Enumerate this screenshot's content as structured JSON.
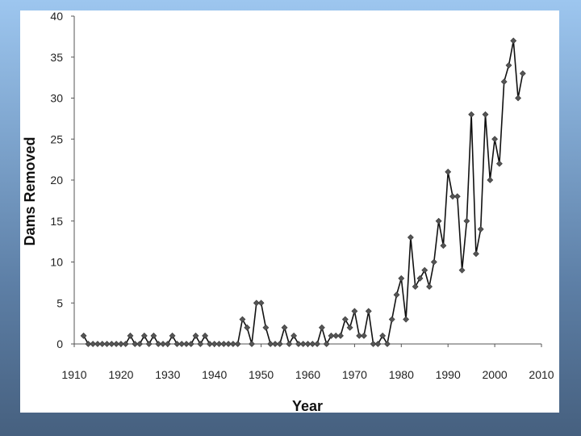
{
  "chart_data": {
    "type": "line",
    "title": "",
    "xlabel": "Year",
    "ylabel": "Dams Removed",
    "xlim": [
      1910,
      2010
    ],
    "ylim": [
      0,
      40
    ],
    "x_ticks": [
      1910,
      1920,
      1930,
      1940,
      1950,
      1960,
      1970,
      1980,
      1990,
      2000,
      2010
    ],
    "y_ticks": [
      0,
      5,
      10,
      15,
      20,
      25,
      30,
      35,
      40
    ],
    "grid": false,
    "legend": "none",
    "colors": {
      "line": "#111111",
      "marker": "#555555"
    },
    "series": [
      {
        "marker": "diamond",
        "x": [
          1912,
          1913,
          1914,
          1915,
          1916,
          1917,
          1918,
          1919,
          1920,
          1921,
          1922,
          1923,
          1924,
          1925,
          1926,
          1927,
          1928,
          1929,
          1930,
          1931,
          1932,
          1933,
          1934,
          1935,
          1936,
          1937,
          1938,
          1939,
          1940,
          1941,
          1942,
          1943,
          1944,
          1945,
          1946,
          1947,
          1948,
          1949,
          1950,
          1951,
          1952,
          1953,
          1954,
          1955,
          1956,
          1957,
          1958,
          1959,
          1960,
          1961,
          1962,
          1963,
          1964,
          1965,
          1966,
          1967,
          1968,
          1969,
          1970,
          1971,
          1972,
          1973,
          1974,
          1975,
          1976,
          1977,
          1978,
          1979,
          1980,
          1981,
          1982,
          1983,
          1984,
          1985,
          1986,
          1987,
          1988,
          1989,
          1990,
          1991,
          1992,
          1993,
          1994,
          1995,
          1996,
          1997,
          1998,
          1999,
          2000,
          2001,
          2002,
          2003,
          2004,
          2005,
          2006
        ],
        "y": [
          1,
          0,
          0,
          0,
          0,
          0,
          0,
          0,
          0,
          0,
          1,
          0,
          0,
          1,
          0,
          1,
          0,
          0,
          0,
          1,
          0,
          0,
          0,
          0,
          1,
          0,
          1,
          0,
          0,
          0,
          0,
          0,
          0,
          0,
          3,
          2,
          0,
          5,
          5,
          2,
          0,
          0,
          0,
          2,
          0,
          1,
          0,
          0,
          0,
          0,
          0,
          2,
          0,
          1,
          1,
          1,
          3,
          2,
          4,
          1,
          1,
          4,
          0,
          0,
          1,
          0,
          3,
          6,
          8,
          3,
          13,
          7,
          8,
          9,
          7,
          10,
          15,
          12,
          21,
          18,
          18,
          9,
          15,
          28,
          11,
          14,
          28,
          20,
          25,
          22,
          32,
          34,
          37,
          30,
          33
        ]
      }
    ]
  }
}
